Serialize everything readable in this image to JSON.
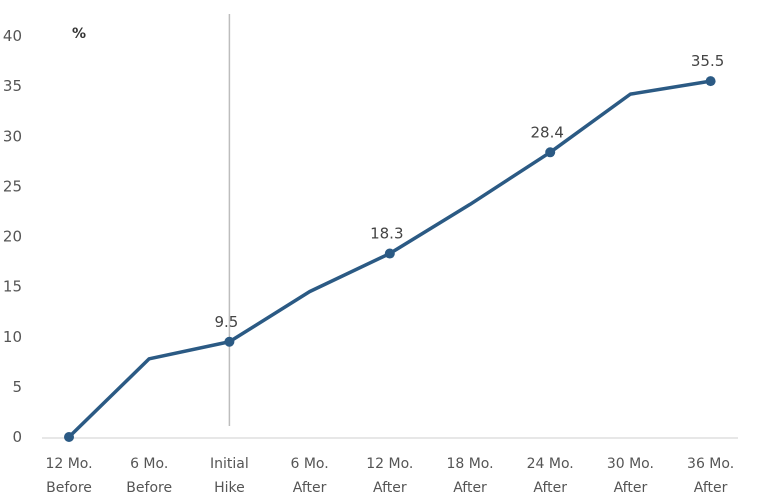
{
  "chart_data": {
    "type": "line",
    "ylabel": "%",
    "ylim": [
      0,
      40
    ],
    "yticks": [
      0,
      5,
      10,
      15,
      20,
      25,
      30,
      35,
      40
    ],
    "categories": [
      [
        "12 Mo.",
        "Before"
      ],
      [
        "6 Mo.",
        "Before"
      ],
      [
        "Initial",
        "Hike"
      ],
      [
        "6 Mo.",
        "After"
      ],
      [
        "12 Mo.",
        "After"
      ],
      [
        "18 Mo.",
        "After"
      ],
      [
        "24 Mo.",
        "After"
      ],
      [
        "30 Mo.",
        "After"
      ],
      [
        "36 Mo.",
        "After"
      ]
    ],
    "series": [
      {
        "values": [
          0,
          7.8,
          9.5,
          14.5,
          18.3,
          23.2,
          28.4,
          34.2,
          35.5
        ],
        "color": "#2b5a84"
      }
    ],
    "markers": [
      0,
      2,
      4,
      6,
      8
    ],
    "data_labels": [
      {
        "index": 2,
        "text": "9.5"
      },
      {
        "index": 4,
        "text": "18.3"
      },
      {
        "index": 6,
        "text": "28.4"
      },
      {
        "index": 8,
        "text": "35.5"
      }
    ],
    "vertical_line_at": 2,
    "grid": false
  }
}
